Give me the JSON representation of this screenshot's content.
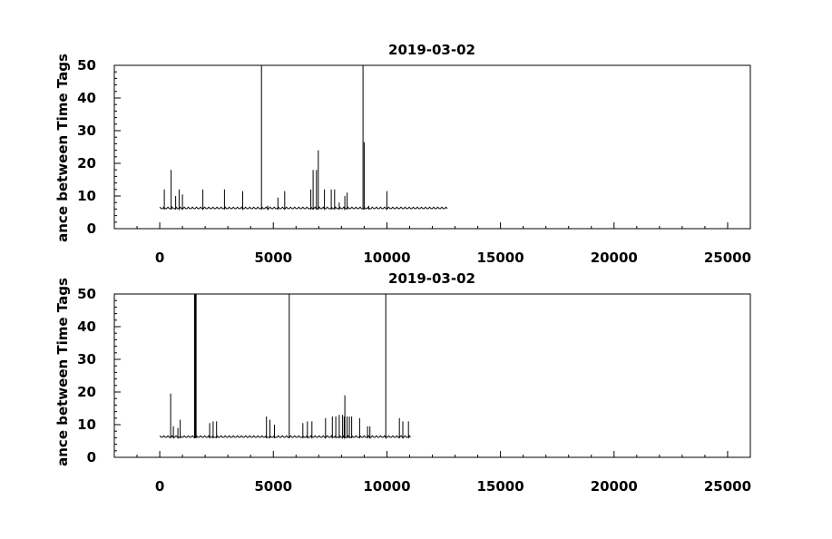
{
  "chart_data": [
    {
      "type": "line",
      "title": "2019-03-02",
      "ylabel": "ance between Time Tags",
      "xlabel": "",
      "xlim": [
        -2000,
        26000
      ],
      "ylim": [
        0,
        50
      ],
      "xticks": [
        0,
        5000,
        10000,
        15000,
        20000,
        25000
      ],
      "yticks": [
        0,
        10,
        20,
        30,
        40,
        50
      ],
      "baseline": 6,
      "x_extent": [
        0,
        12700
      ],
      "spikes": [
        [
          200,
          12
        ],
        [
          500,
          18
        ],
        [
          700,
          10
        ],
        [
          850,
          12
        ],
        [
          1000,
          10.5
        ],
        [
          1900,
          12
        ],
        [
          2850,
          12
        ],
        [
          3650,
          11.5
        ],
        [
          4480,
          50
        ],
        [
          4750,
          7
        ],
        [
          5200,
          9.5
        ],
        [
          5500,
          11.5
        ],
        [
          6650,
          12
        ],
        [
          6750,
          18
        ],
        [
          6900,
          18
        ],
        [
          6980,
          24
        ],
        [
          7250,
          12
        ],
        [
          7550,
          12
        ],
        [
          7700,
          12
        ],
        [
          7900,
          8
        ],
        [
          8150,
          10
        ],
        [
          8250,
          11
        ],
        [
          8950,
          50
        ],
        [
          9000,
          26.5
        ],
        [
          9200,
          7
        ],
        [
          10000,
          11.5
        ]
      ]
    },
    {
      "type": "line",
      "title": "2019-03-02",
      "ylabel": "ance between Time Tags",
      "xlabel": "",
      "xlim": [
        -2000,
        26000
      ],
      "ylim": [
        0,
        50
      ],
      "xticks": [
        0,
        5000,
        10000,
        15000,
        20000,
        25000
      ],
      "yticks": [
        0,
        10,
        20,
        30,
        40,
        50
      ],
      "baseline": 6,
      "x_extent": [
        0,
        11050
      ],
      "spikes": [
        [
          480,
          19.5
        ],
        [
          600,
          9.5
        ],
        [
          800,
          9
        ],
        [
          900,
          11.5
        ],
        [
          1530,
          50
        ],
        [
          1560,
          50
        ],
        [
          1600,
          50
        ],
        [
          2200,
          10.5
        ],
        [
          2350,
          11
        ],
        [
          2500,
          11
        ],
        [
          4700,
          12.5
        ],
        [
          4850,
          11.5
        ],
        [
          5050,
          10
        ],
        [
          5700,
          50
        ],
        [
          6300,
          10.5
        ],
        [
          6500,
          11
        ],
        [
          6700,
          11
        ],
        [
          7300,
          12
        ],
        [
          7600,
          12.5
        ],
        [
          7750,
          12.5
        ],
        [
          7900,
          13
        ],
        [
          8050,
          13
        ],
        [
          8120,
          12.5
        ],
        [
          8150,
          19
        ],
        [
          8250,
          12.5
        ],
        [
          8350,
          12.5
        ],
        [
          8450,
          12.5
        ],
        [
          8800,
          12
        ],
        [
          9150,
          9.5
        ],
        [
          9250,
          9.5
        ],
        [
          9950,
          50
        ],
        [
          10550,
          12
        ],
        [
          10700,
          11
        ],
        [
          10950,
          11
        ]
      ]
    }
  ]
}
